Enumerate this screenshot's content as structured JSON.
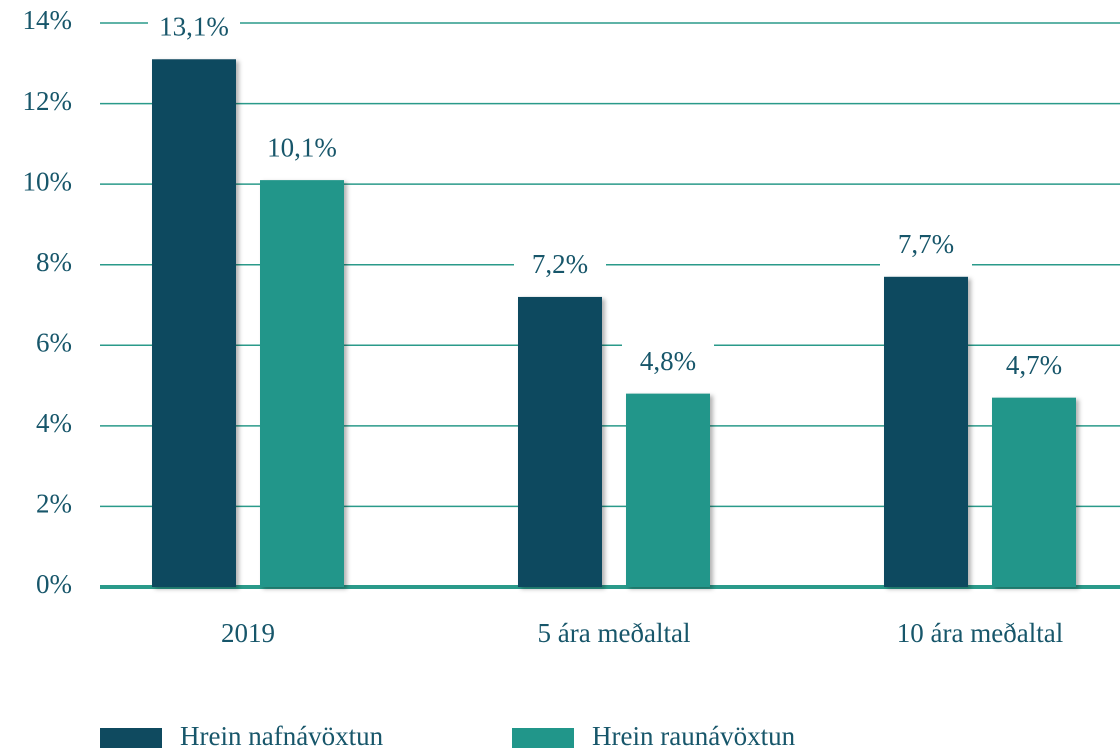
{
  "chart_data": {
    "type": "bar",
    "categories": [
      "2019",
      "5 ára meðaltal",
      "10 ára meðaltal"
    ],
    "series": [
      {
        "name": "Hrein nafnávöxtun",
        "color": "#0f4a5f",
        "values": [
          13.1,
          7.2,
          7.7
        ],
        "value_labels": [
          "13,1%",
          "7,2%",
          "7,7%"
        ]
      },
      {
        "name": "Hrein raunávöxtun",
        "color": "#21968a",
        "values": [
          10.1,
          4.8,
          4.7
        ],
        "value_labels": [
          "10,1%",
          "4,8%",
          "4,7%"
        ]
      }
    ],
    "ylim": [
      0,
      14
    ],
    "yticks": [
      {
        "value": 0,
        "label": "0%"
      },
      {
        "value": 2,
        "label": "2%"
      },
      {
        "value": 4,
        "label": "4%"
      },
      {
        "value": 6,
        "label": "6%"
      },
      {
        "value": 8,
        "label": "8%"
      },
      {
        "value": 10,
        "label": "10%"
      },
      {
        "value": 12,
        "label": "12%"
      },
      {
        "value": 14,
        "label": "14%"
      }
    ],
    "grid": true,
    "legend": "bottom"
  }
}
